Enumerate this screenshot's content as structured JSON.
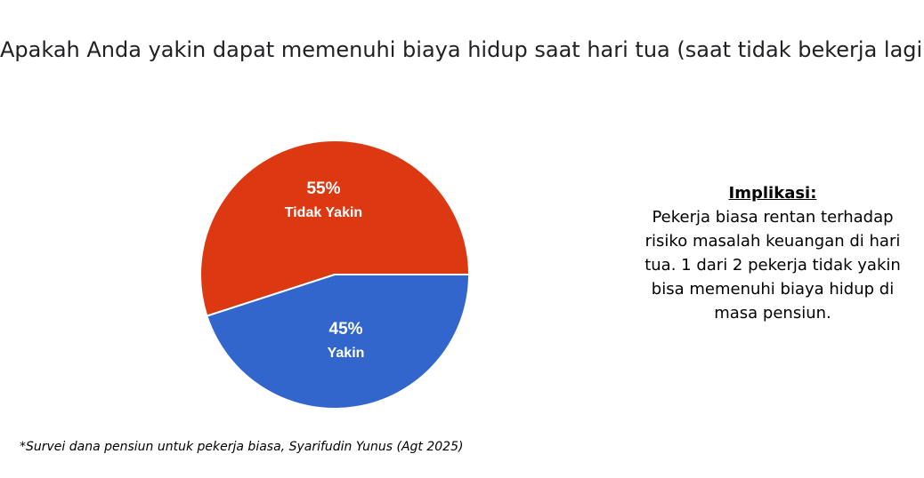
{
  "chart_data": {
    "type": "pie",
    "title": "Apakah Anda yakin dapat memenuhi biaya hidup saat hari tua (saat tidak bekerja lagi)",
    "slices": [
      {
        "label": "Tidak Yakin",
        "value": 55,
        "value_label": "55%",
        "color": "#dc3912"
      },
      {
        "label": "Yakin",
        "value": 45,
        "value_label": "45%",
        "color": "#3366cc"
      }
    ],
    "legend": "none"
  },
  "implication": {
    "heading": "Implikasi:",
    "body": "Pekerja biasa rentan terhadap risiko masalah keuangan di hari tua. 1 dari 2 pekerja tidak yakin bisa memenuhi biaya hidup di masa pensiun."
  },
  "footnote": "*Survei dana pensiun untuk pekerja biasa, Syarifudin Yunus (Agt 2025)"
}
